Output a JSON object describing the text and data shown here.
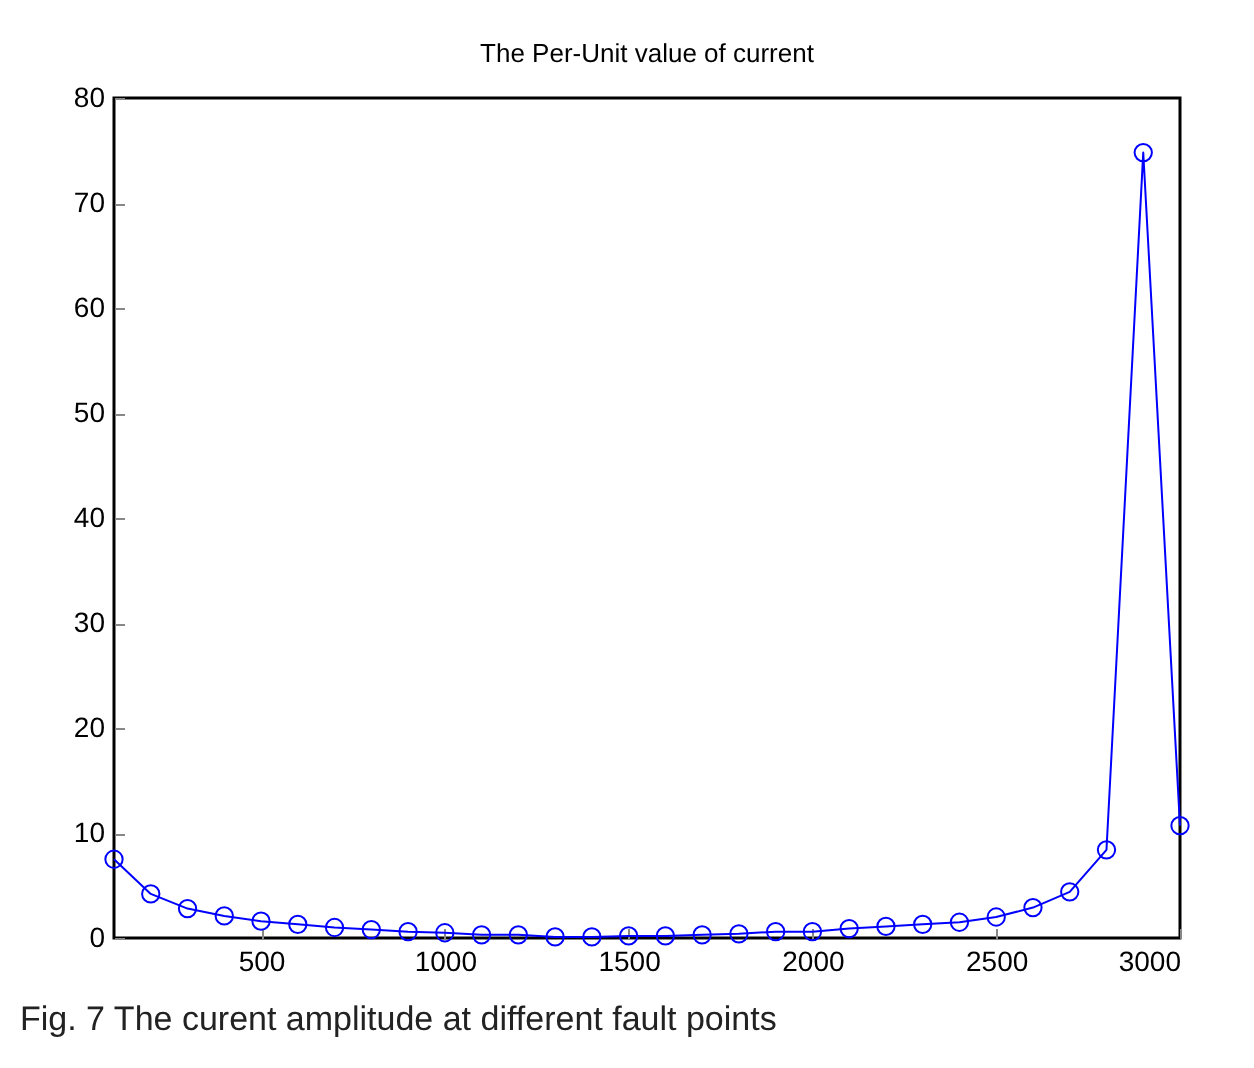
{
  "chart_data": {
    "type": "line",
    "title": "The Per-Unit value of current",
    "x": [
      100,
      200,
      300,
      400,
      500,
      600,
      700,
      800,
      900,
      1000,
      1100,
      1200,
      1300,
      1400,
      1500,
      1600,
      1700,
      1800,
      1900,
      2000,
      2100,
      2200,
      2300,
      2400,
      2500,
      2600,
      2700,
      2800,
      2900,
      3000
    ],
    "series": [
      {
        "color": "#0000ff",
        "values": [
          7.5,
          4.2,
          2.8,
          2.1,
          1.6,
          1.3,
          1.0,
          0.8,
          0.6,
          0.5,
          0.3,
          0.3,
          0.1,
          0.1,
          0.2,
          0.2,
          0.3,
          0.4,
          0.6,
          0.6,
          0.9,
          1.1,
          1.3,
          1.5,
          2.0,
          2.9,
          4.4,
          8.4,
          74.8,
          10.7
        ]
      }
    ],
    "xlim": [
      100,
      3000
    ],
    "xticks": [
      500,
      1000,
      1500,
      2000,
      2500,
      3000
    ],
    "ylim": [
      0,
      80
    ],
    "yticks": [
      0,
      10,
      20,
      30,
      40,
      50,
      60,
      70,
      80
    ],
    "marker": "circle",
    "line_style": "solid",
    "grid": false,
    "annotations": [
      "Fig. 7 The curent amplitude at different fault points"
    ]
  }
}
